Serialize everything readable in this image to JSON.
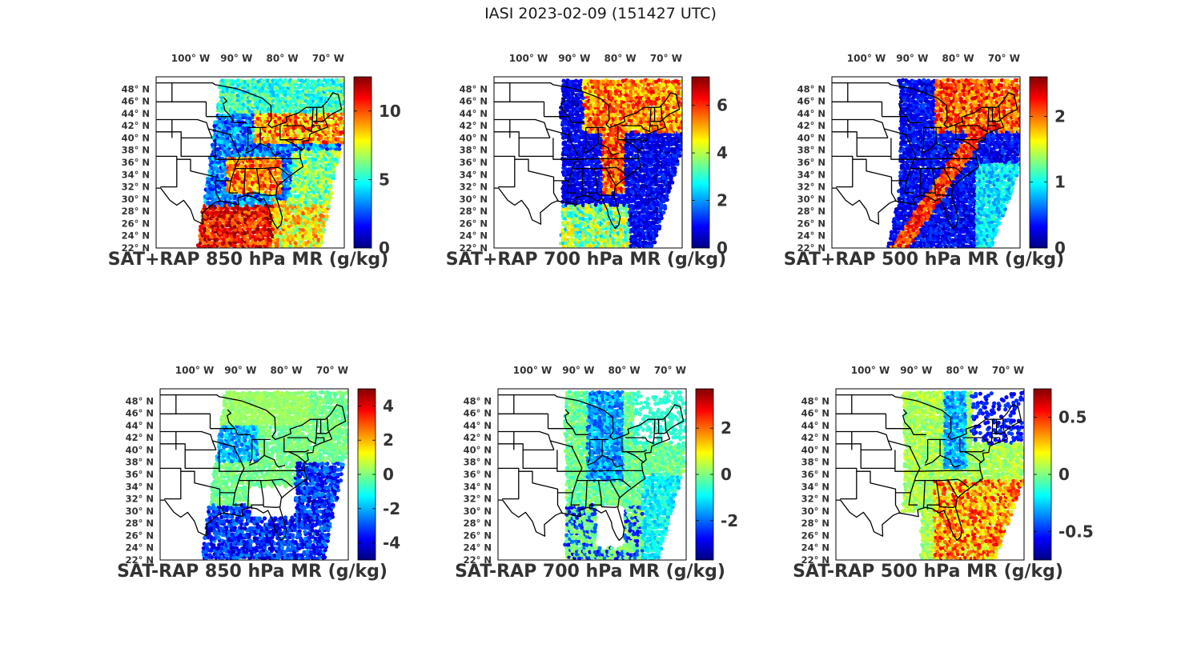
{
  "figure": {
    "title": "IASI 2023-02-09 (151427 UTC)"
  },
  "lon_labels": [
    "100° W",
    "90° W",
    "80° W",
    "70° W"
  ],
  "lat_labels": [
    "48° N",
    "46° N",
    "44° N",
    "42° N",
    "40° N",
    "38° N",
    "36° N",
    "34° N",
    "32° N",
    "30° N",
    "28° N",
    "26° N",
    "24° N",
    "22° N"
  ],
  "colormap": "jet",
  "panels": [
    {
      "id": "sat-rap-sum-850",
      "title": "SAT+RAP 850 hPa MR (g/kg)",
      "cmin": 0,
      "cmax": 12.5,
      "ticks": [
        0,
        5,
        10
      ],
      "field": "sum850",
      "swath": "a"
    },
    {
      "id": "sat-rap-sum-700",
      "title": "SAT+RAP 700 hPa MR (g/kg)",
      "cmin": 0,
      "cmax": 7.2,
      "ticks": [
        0,
        2,
        4,
        6
      ],
      "field": "sum700",
      "swath": "b"
    },
    {
      "id": "sat-rap-sum-500",
      "title": "SAT+RAP 500 hPa MR (g/kg)",
      "cmin": 0,
      "cmax": 2.6,
      "ticks": [
        0,
        1,
        2
      ],
      "field": "sum500",
      "swath": "c"
    },
    {
      "id": "sat-rap-diff-850",
      "title": "SAT-RAP 850 hPa MR (g/kg)",
      "cmin": -5,
      "cmax": 5,
      "ticks": [
        -4,
        -2,
        0,
        2,
        4
      ],
      "field": "diff850",
      "swath": "a"
    },
    {
      "id": "sat-rap-diff-700",
      "title": "SAT-RAP 700 hPa MR (g/kg)",
      "cmin": -3.7,
      "cmax": 3.7,
      "ticks": [
        -2,
        0,
        2
      ],
      "field": "diff700",
      "swath": "b"
    },
    {
      "id": "sat-rap-diff-500",
      "title": "SAT-RAP 500 hPa MR (g/kg)",
      "cmin": -0.75,
      "cmax": 0.75,
      "ticks": [
        -0.5,
        0,
        0.5
      ],
      "field": "diff500",
      "swath": "c"
    }
  ]
}
